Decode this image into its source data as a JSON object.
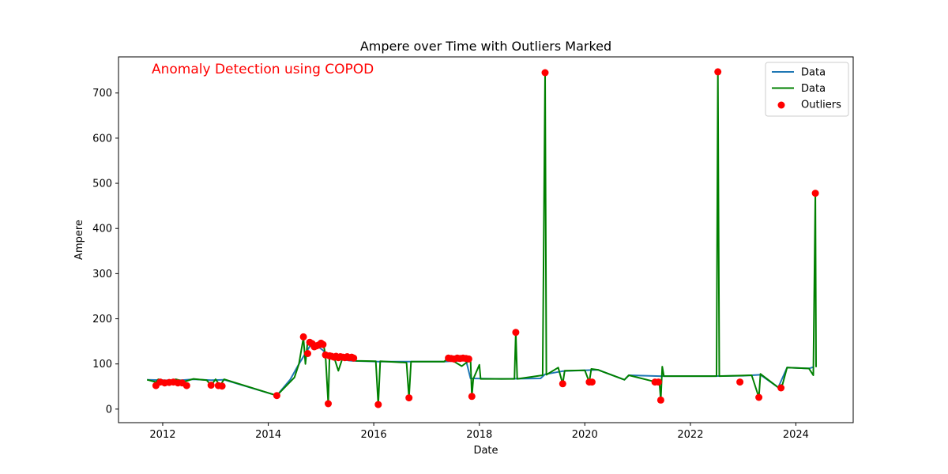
{
  "chart_data": {
    "type": "line",
    "title": "Ampere over Time with Outliers Marked",
    "xlabel": "Date",
    "ylabel": "Ampere",
    "annotation": "Anomaly Detection using COPOD",
    "xlim": [
      "2011-03-01",
      "2025-02-01"
    ],
    "ylim": [
      -30,
      780
    ],
    "x_ticks": [
      "2012",
      "2014",
      "2016",
      "2018",
      "2020",
      "2022",
      "2024"
    ],
    "y_ticks": [
      0,
      100,
      200,
      300,
      400,
      500,
      600,
      700
    ],
    "grid": false,
    "legend_position": "upper-right",
    "colors": {
      "data_blue": "#1f77b4",
      "data_green": "#008000",
      "outliers": "#ff0000",
      "annotation": "#ff0000"
    },
    "series": [
      {
        "name": "Data",
        "color": "#1f77b4",
        "points": [
          [
            "2011-09-15",
            65
          ],
          [
            "2012-01-01",
            64
          ],
          [
            "2012-04-01",
            63
          ],
          [
            "2012-08-01",
            66
          ],
          [
            "2012-12-01",
            64
          ],
          [
            "2013-03-01",
            65
          ],
          [
            "2014-03-01",
            30
          ],
          [
            "2014-06-01",
            65
          ],
          [
            "2014-08-01",
            100
          ],
          [
            "2014-11-01",
            148
          ],
          [
            "2015-01-15",
            130
          ],
          [
            "2015-03-01",
            113
          ],
          [
            "2015-08-01",
            107
          ],
          [
            "2016-02-01",
            105
          ],
          [
            "2017-05-01",
            105
          ],
          [
            "2017-10-01",
            108
          ],
          [
            "2017-11-01",
            68
          ],
          [
            "2018-06-01",
            67
          ],
          [
            "2019-03-01",
            68
          ],
          [
            "2019-04-01",
            77
          ],
          [
            "2019-08-01",
            84
          ],
          [
            "2020-04-01",
            87
          ],
          [
            "2020-10-01",
            65
          ],
          [
            "2020-11-01",
            75
          ],
          [
            "2021-06-01",
            73
          ],
          [
            "2022-06-01",
            73
          ],
          [
            "2023-01-01",
            74
          ],
          [
            "2023-05-01",
            76
          ],
          [
            "2023-09-01",
            48
          ],
          [
            "2023-11-01",
            92
          ],
          [
            "2024-04-01",
            90
          ],
          [
            "2024-05-01",
            93
          ]
        ]
      },
      {
        "name": "Data",
        "color": "#008000",
        "points": [
          [
            "2011-09-15",
            65
          ],
          [
            "2011-11-15",
            60
          ],
          [
            "2011-12-01",
            66
          ],
          [
            "2012-02-01",
            61
          ],
          [
            "2012-04-01",
            66
          ],
          [
            "2012-06-01",
            61
          ],
          [
            "2012-08-01",
            67
          ],
          [
            "2012-11-01",
            64
          ],
          [
            "2012-12-01",
            53
          ],
          [
            "2013-01-01",
            66
          ],
          [
            "2013-02-01",
            52
          ],
          [
            "2013-03-01",
            66
          ],
          [
            "2014-03-01",
            30
          ],
          [
            "2014-07-01",
            70
          ],
          [
            "2014-08-01",
            100
          ],
          [
            "2014-09-01",
            158
          ],
          [
            "2014-09-15",
            100
          ],
          [
            "2014-10-01",
            152
          ],
          [
            "2014-12-01",
            140
          ],
          [
            "2015-01-15",
            148
          ],
          [
            "2015-02-01",
            120
          ],
          [
            "2015-02-20",
            12
          ],
          [
            "2015-03-01",
            122
          ],
          [
            "2015-04-01",
            115
          ],
          [
            "2015-05-01",
            85
          ],
          [
            "2015-06-01",
            115
          ],
          [
            "2015-09-01",
            107
          ],
          [
            "2016-01-15",
            106
          ],
          [
            "2016-02-01",
            10
          ],
          [
            "2016-02-15",
            106
          ],
          [
            "2016-08-15",
            103
          ],
          [
            "2016-09-01",
            25
          ],
          [
            "2016-09-15",
            105
          ],
          [
            "2017-05-01",
            105
          ],
          [
            "2017-06-01",
            113
          ],
          [
            "2017-09-01",
            95
          ],
          [
            "2017-11-01",
            110
          ],
          [
            "2017-11-10",
            28
          ],
          [
            "2017-11-20",
            67
          ],
          [
            "2018-01-01",
            98
          ],
          [
            "2018-01-10",
            67
          ],
          [
            "2018-09-01",
            67
          ],
          [
            "2018-09-10",
            170
          ],
          [
            "2018-09-20",
            67
          ],
          [
            "2019-03-15",
            75
          ],
          [
            "2019-04-01",
            745
          ],
          [
            "2019-04-10",
            76
          ],
          [
            "2019-07-01",
            92
          ],
          [
            "2019-08-01",
            56
          ],
          [
            "2019-08-15",
            85
          ],
          [
            "2020-01-01",
            86
          ],
          [
            "2020-02-01",
            60
          ],
          [
            "2020-02-15",
            89
          ],
          [
            "2020-04-01",
            87
          ],
          [
            "2020-10-01",
            65
          ],
          [
            "2020-11-01",
            75
          ],
          [
            "2021-06-01",
            58
          ],
          [
            "2021-06-10",
            20
          ],
          [
            "2021-06-20",
            94
          ],
          [
            "2021-07-01",
            73
          ],
          [
            "2022-07-01",
            73
          ],
          [
            "2022-07-10",
            747
          ],
          [
            "2022-07-20",
            73
          ],
          [
            "2023-03-01",
            75
          ],
          [
            "2023-04-20",
            26
          ],
          [
            "2023-05-01",
            78
          ],
          [
            "2023-09-01",
            48
          ],
          [
            "2023-10-01",
            55
          ],
          [
            "2023-11-01",
            92
          ],
          [
            "2024-04-01",
            90
          ],
          [
            "2024-05-01",
            75
          ],
          [
            "2024-05-15",
            478
          ],
          [
            "2024-05-20",
            93
          ]
        ]
      }
    ],
    "outliers": {
      "name": "Outliers",
      "color": "#ff0000",
      "points": [
        [
          "2011-11-15",
          52
        ],
        [
          "2011-12-15",
          60
        ],
        [
          "2012-01-15",
          58
        ],
        [
          "2012-02-15",
          59
        ],
        [
          "2012-03-15",
          60
        ],
        [
          "2012-04-15",
          58
        ],
        [
          "2012-05-15",
          58
        ],
        [
          "2012-06-15",
          52
        ],
        [
          "2012-12-01",
          53
        ],
        [
          "2013-01-20",
          52
        ],
        [
          "2013-02-15",
          51
        ],
        [
          "2014-03-01",
          30
        ],
        [
          "2014-09-01",
          160
        ],
        [
          "2014-10-01",
          123
        ],
        [
          "2014-10-15",
          148
        ],
        [
          "2014-11-01",
          145
        ],
        [
          "2014-11-15",
          138
        ],
        [
          "2014-12-01",
          140
        ],
        [
          "2014-12-15",
          142
        ],
        [
          "2015-01-01",
          146
        ],
        [
          "2015-01-15",
          143
        ],
        [
          "2015-02-01",
          120
        ],
        [
          "2015-02-20",
          12
        ],
        [
          "2015-03-01",
          118
        ],
        [
          "2015-03-15",
          117
        ],
        [
          "2015-04-01",
          115
        ],
        [
          "2015-04-15",
          117
        ],
        [
          "2015-05-01",
          114
        ],
        [
          "2015-05-15",
          116
        ],
        [
          "2015-06-01",
          115
        ],
        [
          "2015-06-15",
          114
        ],
        [
          "2015-07-01",
          116
        ],
        [
          "2015-07-15",
          114
        ],
        [
          "2015-08-01",
          115
        ],
        [
          "2015-08-15",
          113
        ],
        [
          "2016-02-01",
          10
        ],
        [
          "2016-09-01",
          25
        ],
        [
          "2017-06-01",
          113
        ],
        [
          "2017-06-20",
          112
        ],
        [
          "2017-07-10",
          111
        ],
        [
          "2017-08-01",
          113
        ],
        [
          "2017-08-20",
          112
        ],
        [
          "2017-09-10",
          113
        ],
        [
          "2017-10-01",
          112
        ],
        [
          "2017-10-20",
          111
        ],
        [
          "2017-11-10",
          28
        ],
        [
          "2018-09-10",
          170
        ],
        [
          "2019-04-01",
          745
        ],
        [
          "2019-08-01",
          56
        ],
        [
          "2020-02-01",
          60
        ],
        [
          "2020-02-20",
          60
        ],
        [
          "2021-05-01",
          60
        ],
        [
          "2021-05-25",
          60
        ],
        [
          "2021-06-10",
          20
        ],
        [
          "2022-07-10",
          747
        ],
        [
          "2022-12-10",
          60
        ],
        [
          "2023-04-20",
          26
        ],
        [
          "2023-09-20",
          47
        ],
        [
          "2024-05-15",
          478
        ]
      ]
    }
  }
}
